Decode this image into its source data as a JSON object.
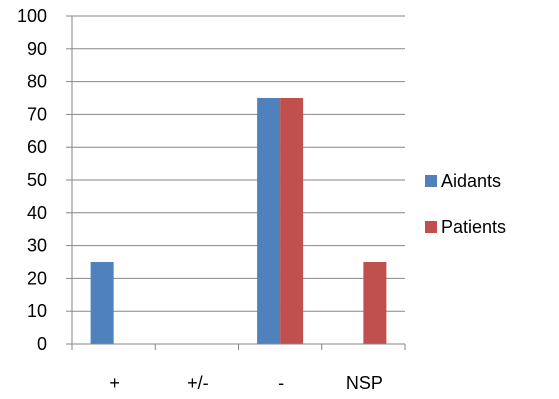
{
  "chart_data": {
    "type": "bar",
    "categories": [
      "+",
      "+/-",
      "-",
      "NSP"
    ],
    "series": [
      {
        "name": "Aidants",
        "values": [
          25,
          0,
          75,
          0
        ],
        "color": "#4F81BD"
      },
      {
        "name": "Patients",
        "values": [
          0,
          0,
          75,
          25
        ],
        "color": "#C0504D"
      }
    ],
    "ylim": [
      0,
      100
    ],
    "yticks": [
      0,
      10,
      20,
      30,
      40,
      50,
      60,
      70,
      80,
      90,
      100
    ],
    "grid": true,
    "legend_position": "right",
    "gridline_color": "#868686"
  }
}
